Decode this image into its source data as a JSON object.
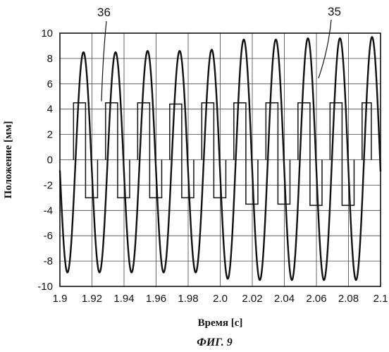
{
  "chart_data": {
    "type": "line",
    "xlabel": "Время [с]",
    "ylabel": "Положение [мм]",
    "caption": "ФИГ. 9",
    "xlim": [
      1.9,
      2.1
    ],
    "ylim": [
      -10,
      10
    ],
    "xticks": [
      1.9,
      1.92,
      1.94,
      1.96,
      1.98,
      2.0,
      2.02,
      2.04,
      2.06,
      2.08,
      2.1
    ],
    "xtick_labels": [
      "1.9",
      "1.92",
      "1.94",
      "1.96",
      "1.98",
      "2.0",
      "2.02",
      "2.04",
      "2.06",
      "2.08",
      "2.1"
    ],
    "yticks": [
      10,
      8,
      6,
      4,
      2,
      0,
      -2,
      -4,
      -6,
      -8,
      -10
    ],
    "ytick_labels": [
      "10",
      "8",
      "6",
      "4",
      "2",
      "0",
      "-2",
      "-4",
      "-6",
      "-8",
      "-10"
    ],
    "grid": true,
    "annotations": [
      {
        "text": "36",
        "series": "36",
        "x": 1.929,
        "y": 4.4
      },
      {
        "text": "35",
        "series": "35",
        "x": 2.063,
        "y": 7.0
      }
    ],
    "series": [
      {
        "name": "35",
        "kind": "sine",
        "frequency_hz": 50,
        "peaks": [
          [
            1.9147,
            8.5
          ],
          [
            1.9347,
            8.5
          ],
          [
            1.9547,
            8.6
          ],
          [
            1.9747,
            8.6
          ],
          [
            1.9947,
            8.7
          ],
          [
            2.0147,
            9.5
          ],
          [
            2.0347,
            9.5
          ],
          [
            2.0547,
            9.6
          ],
          [
            2.0747,
            9.6
          ],
          [
            2.0947,
            9.7
          ]
        ],
        "troughs": [
          [
            1.9047,
            -8.9
          ],
          [
            1.9247,
            -8.9
          ],
          [
            1.9447,
            -8.9
          ],
          [
            1.9647,
            -8.9
          ],
          [
            1.9847,
            -8.9
          ],
          [
            2.0047,
            -9.4
          ],
          [
            2.0247,
            -9.5
          ],
          [
            2.0447,
            -9.5
          ],
          [
            2.0647,
            -9.5
          ],
          [
            2.0847,
            -9.5
          ]
        ]
      },
      {
        "name": "36",
        "kind": "pulse",
        "pulses": [
          {
            "start": 1.9085,
            "end": 1.9235,
            "high": 4.5,
            "low": -3.0
          },
          {
            "start": 1.9285,
            "end": 1.9435,
            "high": 4.5,
            "low": -3.0
          },
          {
            "start": 1.9485,
            "end": 1.9635,
            "high": 4.5,
            "low": -3.0
          },
          {
            "start": 1.9685,
            "end": 1.9835,
            "high": 4.4,
            "low": -3.0
          },
          {
            "start": 1.9885,
            "end": 2.0035,
            "high": 4.5,
            "low": -3.0
          },
          {
            "start": 2.0085,
            "end": 2.0235,
            "high": 4.5,
            "low": -3.5
          },
          {
            "start": 2.0285,
            "end": 2.0435,
            "high": 4.5,
            "low": -3.5
          },
          {
            "start": 2.0485,
            "end": 2.0635,
            "high": 4.5,
            "low": -3.6
          },
          {
            "start": 2.0685,
            "end": 2.0835,
            "high": 4.5,
            "low": -3.6
          },
          {
            "start": 2.0885,
            "end": 2.1,
            "high": 4.5,
            "low": null
          }
        ]
      }
    ]
  }
}
